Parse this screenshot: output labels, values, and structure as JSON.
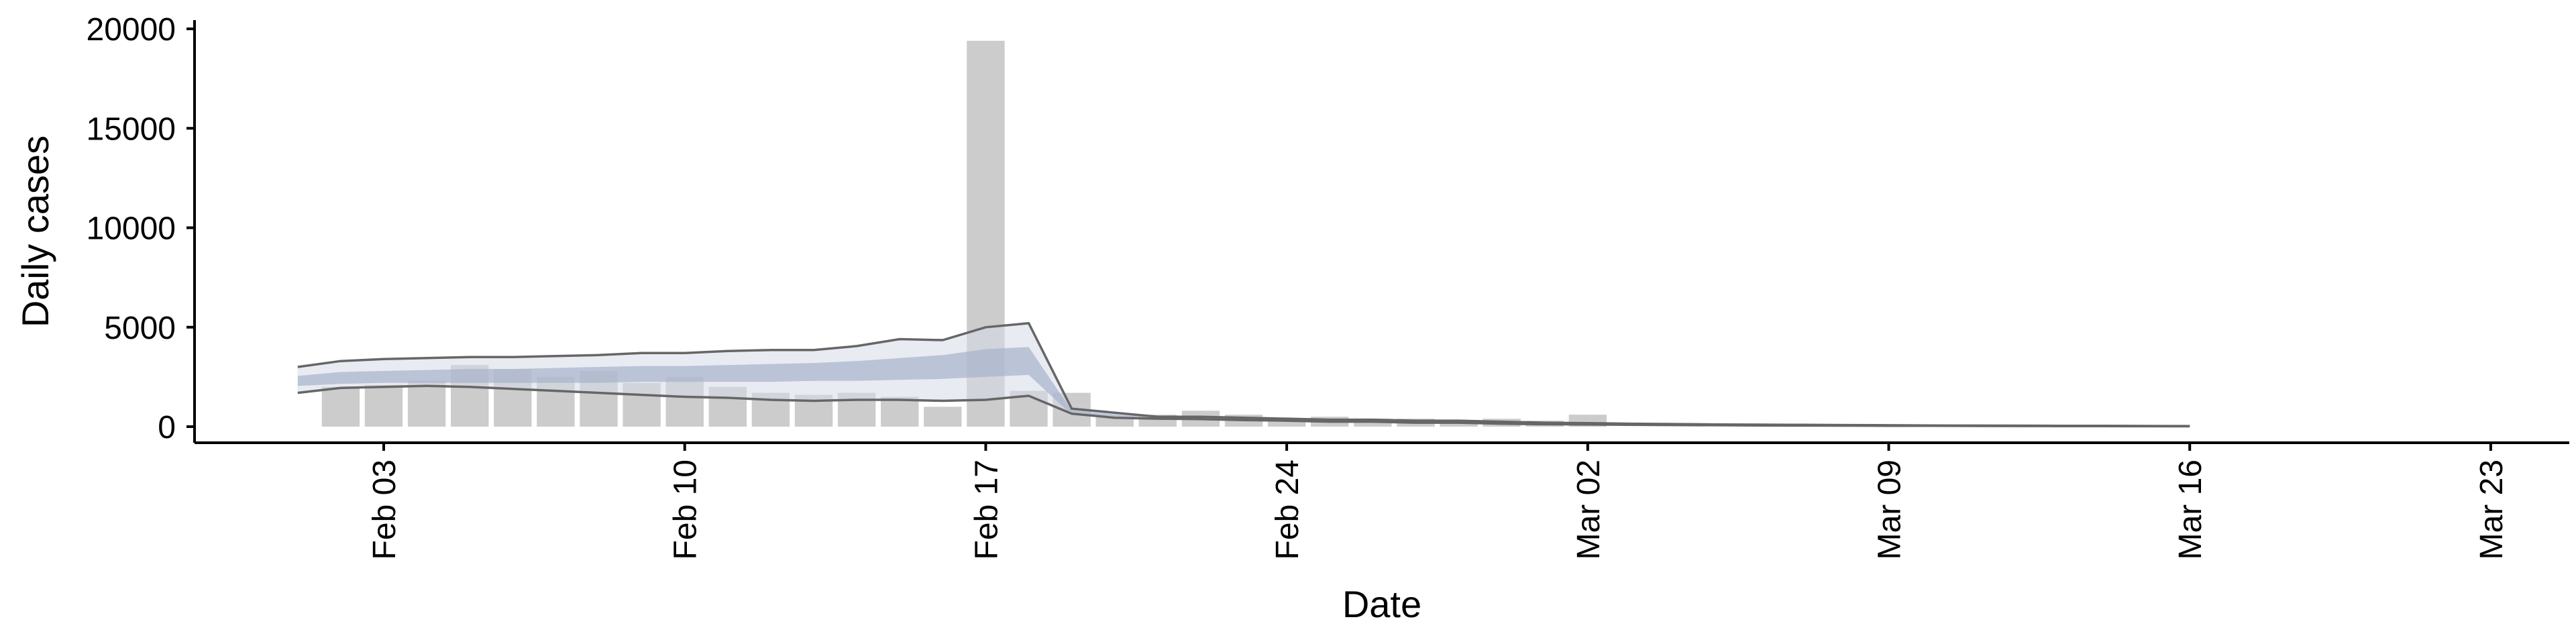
{
  "chart_data": {
    "type": "bar",
    "xlabel": "Date",
    "ylabel": "Daily cases",
    "ylim": [
      0,
      20000
    ],
    "yticks": [
      0,
      5000,
      10000,
      15000,
      20000
    ],
    "xticks": [
      {
        "day": 3,
        "label": "Feb 03"
      },
      {
        "day": 10,
        "label": "Feb 10"
      },
      {
        "day": 17,
        "label": "Feb 17"
      },
      {
        "day": 24,
        "label": "Feb 24"
      },
      {
        "day": 31,
        "label": "Mar 02"
      },
      {
        "day": 38,
        "label": "Mar 09"
      },
      {
        "day": 45,
        "label": "Mar 16"
      },
      {
        "day": 52,
        "label": "Mar 23"
      }
    ],
    "grid": false,
    "colors": {
      "bars": "#cccccc",
      "inner_band": "#a8b3cc",
      "outer_band": "#d5dbe6",
      "bound_lines": "#666666"
    },
    "bars": {
      "x": [
        2,
        3,
        4,
        5,
        6,
        7,
        8,
        9,
        10,
        11,
        12,
        13,
        14,
        15,
        16,
        17,
        18,
        19,
        20,
        21,
        22,
        23,
        24,
        25,
        26,
        27,
        28,
        29,
        30,
        31
      ],
      "values": [
        2000,
        2100,
        2300,
        3100,
        2900,
        2500,
        2800,
        2200,
        2500,
        2000,
        1700,
        1600,
        1700,
        1500,
        1000,
        19400,
        1800,
        1700,
        500,
        600,
        800,
        600,
        400,
        500,
        400,
        400,
        300,
        400,
        300,
        600
      ]
    },
    "projection": {
      "x": [
        1,
        2,
        3,
        4,
        5,
        6,
        7,
        8,
        9,
        10,
        11,
        12,
        13,
        14,
        15,
        16,
        17,
        18,
        19,
        20,
        21,
        22,
        23,
        24,
        25,
        26,
        27,
        28,
        29,
        30,
        31,
        32,
        33,
        34,
        35,
        36,
        37,
        38,
        39,
        40,
        41,
        42,
        43,
        44,
        45
      ],
      "upper_outer": [
        3000,
        3300,
        3400,
        3450,
        3500,
        3500,
        3550,
        3600,
        3700,
        3700,
        3800,
        3850,
        3850,
        4050,
        4400,
        4350,
        5000,
        5200,
        900,
        700,
        500,
        500,
        450,
        400,
        350,
        350,
        300,
        300,
        250,
        200,
        180,
        150,
        130,
        110,
        100,
        90,
        80,
        70,
        60,
        55,
        50,
        45,
        40,
        35,
        30
      ],
      "upper_inner": [
        2550,
        2750,
        2800,
        2850,
        2900,
        2900,
        2950,
        3000,
        3050,
        3050,
        3100,
        3150,
        3200,
        3300,
        3450,
        3600,
        3900,
        4000,
        800,
        620,
        460,
        460,
        410,
        370,
        320,
        320,
        270,
        270,
        220,
        180,
        160,
        135,
        115,
        100,
        90,
        80,
        70,
        62,
        54,
        48,
        43,
        38,
        34,
        30,
        26
      ],
      "median": [
        2300,
        2450,
        2500,
        2530,
        2550,
        2550,
        2580,
        2600,
        2650,
        2650,
        2680,
        2720,
        2750,
        2800,
        2900,
        3000,
        3200,
        3300,
        700,
        550,
        420,
        420,
        380,
        340,
        290,
        290,
        250,
        250,
        200,
        160,
        145,
        122,
        105,
        90,
        80,
        72,
        64,
        56,
        49,
        44,
        39,
        34,
        30,
        26,
        23
      ],
      "lower_inner": [
        2050,
        2150,
        2200,
        2200,
        2200,
        2200,
        2200,
        2200,
        2250,
        2250,
        2250,
        2250,
        2300,
        2300,
        2350,
        2400,
        2500,
        2600,
        600,
        500,
        380,
        380,
        340,
        300,
        260,
        260,
        220,
        220,
        180,
        140,
        130,
        110,
        95,
        80,
        70,
        64,
        57,
        50,
        44,
        39,
        35,
        30,
        27,
        23,
        20
      ],
      "lower_outer": [
        1700,
        1950,
        2000,
        2050,
        2000,
        1900,
        1800,
        1700,
        1600,
        1500,
        1450,
        1350,
        1300,
        1350,
        1350,
        1300,
        1350,
        1550,
        650,
        450,
        400,
        380,
        330,
        300,
        250,
        250,
        200,
        200,
        150,
        120,
        110,
        90,
        80,
        70,
        60,
        55,
        50,
        45,
        40,
        35,
        30,
        26,
        22,
        20,
        18
      ]
    }
  }
}
